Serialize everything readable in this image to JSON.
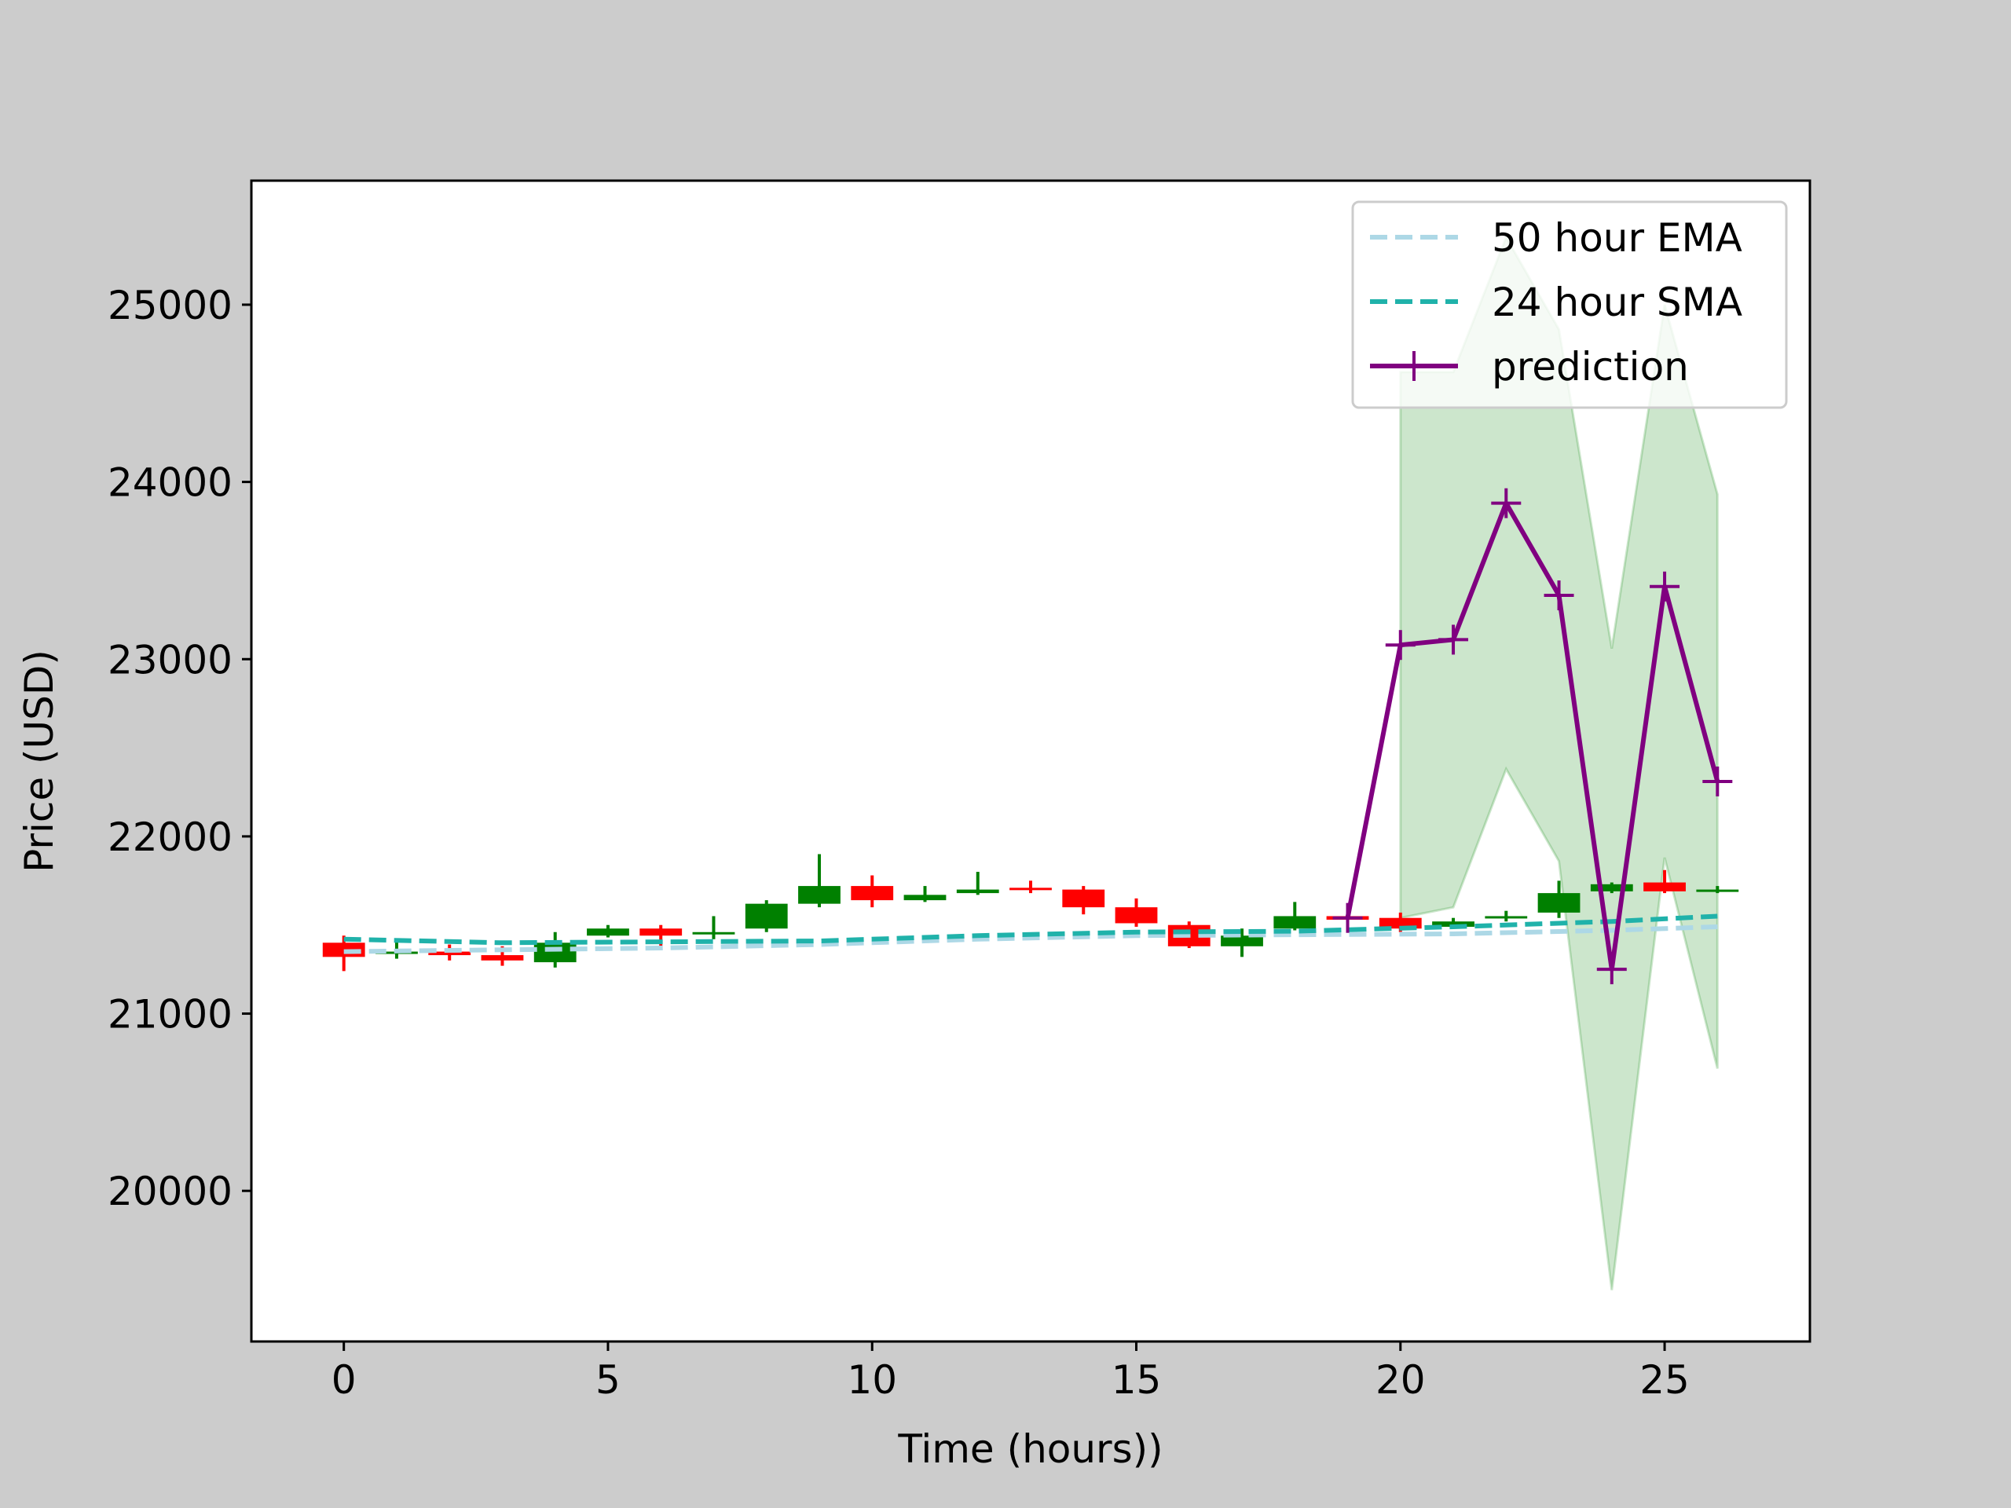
{
  "chart_data": {
    "type": "candlestick",
    "xlabel": "Time (hours))",
    "ylabel": "Price (USD)",
    "xlim": [
      -1.75,
      27.75
    ],
    "ylim": [
      19150,
      25700
    ],
    "xticks": [
      0,
      5,
      10,
      15,
      20,
      25
    ],
    "yticks": [
      20000,
      21000,
      22000,
      23000,
      24000,
      25000
    ],
    "legend_position": "top-right",
    "legend": [
      {
        "label": "50 hour EMA",
        "color": "#add8e6",
        "style": "dashed"
      },
      {
        "label": "24 hour SMA",
        "color": "#20b2aa",
        "style": "dashed"
      },
      {
        "label": "prediction",
        "color": "#800080",
        "style": "solid-plus-markers"
      }
    ],
    "colors": {
      "up": "#008000",
      "down": "#ff0000",
      "band": "#008000"
    },
    "candles": [
      {
        "x": 0,
        "open": 21400,
        "high": 21440,
        "low": 21240,
        "close": 21320
      },
      {
        "x": 1,
        "open": 21340,
        "high": 21410,
        "low": 21310,
        "close": 21350
      },
      {
        "x": 2,
        "open": 21350,
        "high": 21390,
        "low": 21300,
        "close": 21330
      },
      {
        "x": 3,
        "open": 21330,
        "high": 21380,
        "low": 21270,
        "close": 21300
      },
      {
        "x": 4,
        "open": 21290,
        "high": 21460,
        "low": 21260,
        "close": 21400
      },
      {
        "x": 5,
        "open": 21440,
        "high": 21500,
        "low": 21430,
        "close": 21480
      },
      {
        "x": 6,
        "open": 21480,
        "high": 21500,
        "low": 21380,
        "close": 21440
      },
      {
        "x": 7,
        "open": 21450,
        "high": 21550,
        "low": 21420,
        "close": 21460
      },
      {
        "x": 8,
        "open": 21480,
        "high": 21640,
        "low": 21460,
        "close": 21620
      },
      {
        "x": 9,
        "open": 21620,
        "high": 21900,
        "low": 21600,
        "close": 21720
      },
      {
        "x": 10,
        "open": 21720,
        "high": 21780,
        "low": 21600,
        "close": 21640
      },
      {
        "x": 11,
        "open": 21640,
        "high": 21720,
        "low": 21630,
        "close": 21670
      },
      {
        "x": 12,
        "open": 21680,
        "high": 21800,
        "low": 21670,
        "close": 21700
      },
      {
        "x": 13,
        "open": 21710,
        "high": 21750,
        "low": 21680,
        "close": 21700
      },
      {
        "x": 14,
        "open": 21700,
        "high": 21720,
        "low": 21560,
        "close": 21600
      },
      {
        "x": 15,
        "open": 21600,
        "high": 21650,
        "low": 21490,
        "close": 21510
      },
      {
        "x": 16,
        "open": 21500,
        "high": 21520,
        "low": 21370,
        "close": 21380
      },
      {
        "x": 17,
        "open": 21380,
        "high": 21480,
        "low": 21320,
        "close": 21440
      },
      {
        "x": 18,
        "open": 21480,
        "high": 21630,
        "low": 21470,
        "close": 21550
      },
      {
        "x": 19,
        "open": 21550,
        "high": 21570,
        "low": 21520,
        "close": 21530
      },
      {
        "x": 20,
        "open": 21540,
        "high": 21570,
        "low": 21460,
        "close": 21480
      },
      {
        "x": 21,
        "open": 21490,
        "high": 21540,
        "low": 21480,
        "close": 21520
      },
      {
        "x": 22,
        "open": 21540,
        "high": 21580,
        "low": 21520,
        "close": 21550
      },
      {
        "x": 23,
        "open": 21570,
        "high": 21750,
        "low": 21540,
        "close": 21680
      },
      {
        "x": 24,
        "open": 21690,
        "high": 21740,
        "low": 21680,
        "close": 21730
      },
      {
        "x": 25,
        "open": 21740,
        "high": 21810,
        "low": 21680,
        "close": 21690
      },
      {
        "x": 26,
        "open": 21690,
        "high": 21720,
        "low": 21680,
        "close": 21700
      }
    ],
    "series": [
      {
        "name": "50 hour EMA",
        "x": [
          0,
          3,
          6,
          9,
          12,
          15,
          18,
          21,
          24,
          26
        ],
        "y": [
          21350,
          21360,
          21370,
          21390,
          21420,
          21440,
          21445,
          21450,
          21470,
          21490
        ]
      },
      {
        "name": "24 hour SMA",
        "x": [
          0,
          3,
          6,
          9,
          12,
          15,
          18,
          21,
          24,
          26
        ],
        "y": [
          21420,
          21400,
          21405,
          21410,
          21440,
          21460,
          21465,
          21490,
          21520,
          21550
        ]
      },
      {
        "name": "prediction",
        "x": [
          19,
          20,
          21,
          22,
          23,
          24,
          25,
          26
        ],
        "y": [
          21540,
          23080,
          23110,
          23880,
          23360,
          21250,
          23410,
          22310
        ]
      }
    ],
    "confidence_band": {
      "x": [
        20,
        21,
        22,
        23,
        24,
        25,
        26
      ],
      "lower": [
        21540,
        21600,
        22380,
        21860,
        19440,
        21880,
        20690
      ],
      "upper": [
        24620,
        24620,
        25380,
        24860,
        23060,
        25000,
        23930
      ]
    }
  }
}
